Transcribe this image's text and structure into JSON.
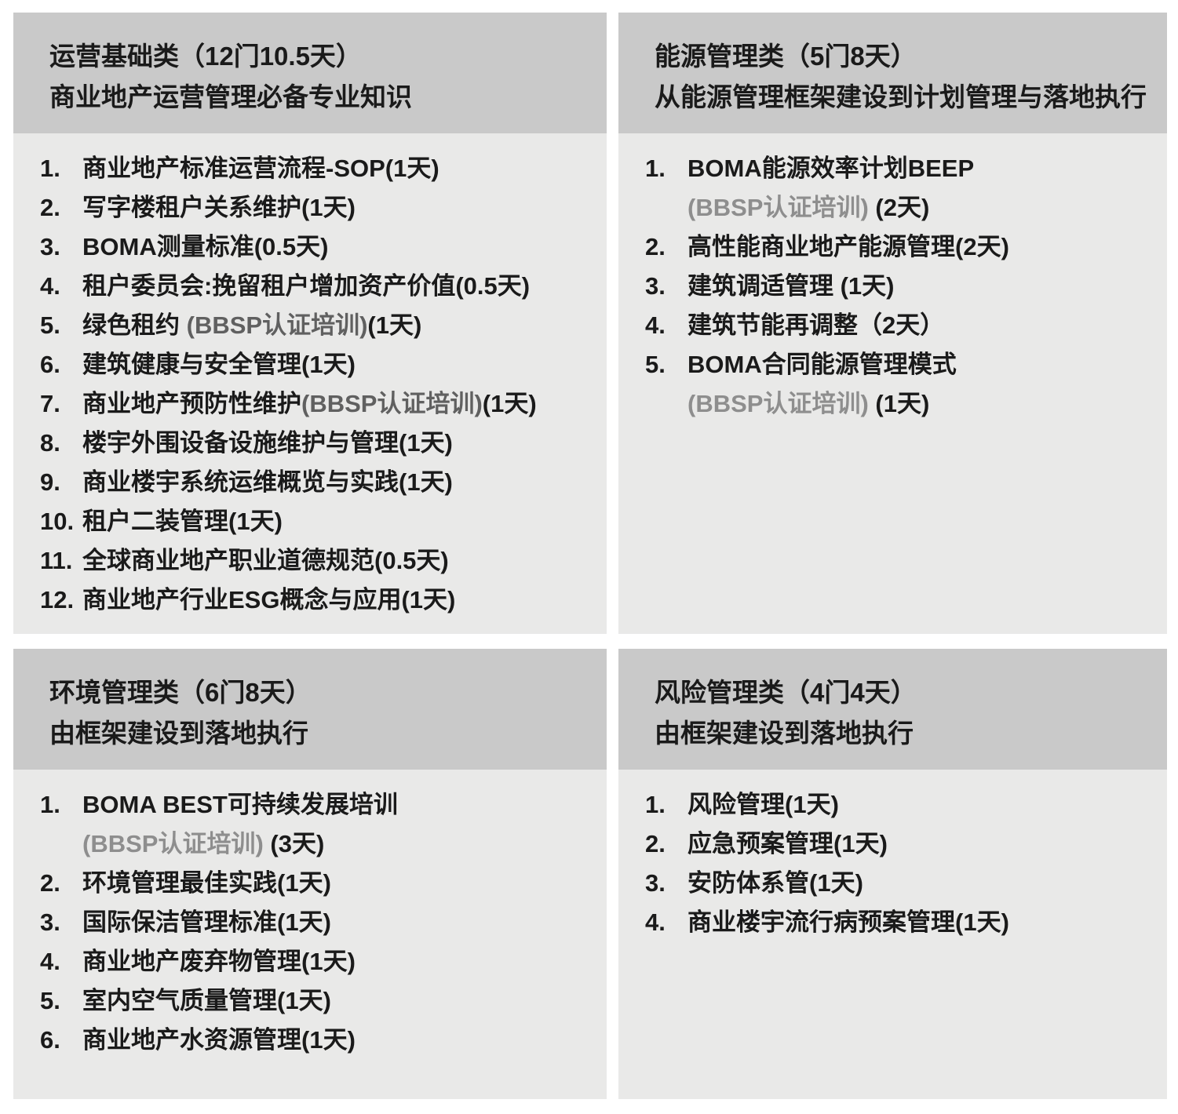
{
  "colors": {
    "page_bg": "#ffffff",
    "header_bg": "#c9c9c9",
    "body_bg": "#e9e9e8",
    "text": "#1a1a1a",
    "gray_inline": "#606060",
    "gray_line": "#8e8e8e"
  },
  "panels": [
    {
      "id": "operations",
      "title": "运营基础类（12门10.5天）",
      "subtitle": "商业地产运营管理必备专业知识",
      "items": [
        {
          "num": "1.",
          "lines": [
            [
              {
                "t": "商业地产标准运营流程-SOP(1天)"
              }
            ]
          ]
        },
        {
          "num": "2.",
          "lines": [
            [
              {
                "t": "写字楼租户关系维护(1天)"
              }
            ]
          ]
        },
        {
          "num": "3.",
          "lines": [
            [
              {
                "t": "BOMA测量标准(0.5天)"
              }
            ]
          ]
        },
        {
          "num": "4.",
          "lines": [
            [
              {
                "t": "租户委员会:挽留租户增加资产价值(0.5天)"
              }
            ]
          ]
        },
        {
          "num": "5.",
          "lines": [
            [
              {
                "t": "绿色租约 "
              },
              {
                "t": "(BBSP认证培训)",
                "c": "gray_inline"
              },
              {
                "t": "(1天)"
              }
            ]
          ]
        },
        {
          "num": "6.",
          "lines": [
            [
              {
                "t": "建筑健康与安全管理(1天)"
              }
            ]
          ]
        },
        {
          "num": "7.",
          "lines": [
            [
              {
                "t": "商业地产预防性维护"
              },
              {
                "t": "(BBSP认证培训)",
                "c": "gray_inline"
              },
              {
                "t": "(1天)"
              }
            ]
          ]
        },
        {
          "num": "8.",
          "lines": [
            [
              {
                "t": "楼宇外围设备设施维护与管理(1天)"
              }
            ]
          ]
        },
        {
          "num": "9.",
          "lines": [
            [
              {
                "t": "商业楼宇系统运维概览与实践(1天)"
              }
            ]
          ]
        },
        {
          "num": "10.",
          "lines": [
            [
              {
                "t": "租户二装管理(1天)"
              }
            ]
          ]
        },
        {
          "num": "11.",
          "lines": [
            [
              {
                "t": "全球商业地产职业道德规范(0.5天)"
              }
            ]
          ]
        },
        {
          "num": "12.",
          "lines": [
            [
              {
                "t": "商业地产行业ESG概念与应用(1天)"
              }
            ]
          ]
        }
      ]
    },
    {
      "id": "energy",
      "title": "能源管理类（5门8天）",
      "subtitle": "从能源管理框架建设到计划管理与落地执行",
      "items": [
        {
          "num": "1.",
          "lines": [
            [
              {
                "t": "BOMA能源效率计划BEEP"
              }
            ],
            [
              {
                "t": "(BBSP认证培训) ",
                "c": "gray_line"
              },
              {
                "t": "(2天)"
              }
            ]
          ]
        },
        {
          "num": "2.",
          "lines": [
            [
              {
                "t": "高性能商业地产能源管理(2天)"
              }
            ]
          ]
        },
        {
          "num": "3.",
          "lines": [
            [
              {
                "t": "建筑调适管理 (1天)"
              }
            ]
          ]
        },
        {
          "num": "4.",
          "lines": [
            [
              {
                "t": "建筑节能再调整（2天）"
              }
            ]
          ]
        },
        {
          "num": "5.",
          "lines": [
            [
              {
                "t": "BOMA合同能源管理模式"
              }
            ],
            [
              {
                "t": "(BBSP认证培训) ",
                "c": "gray_line"
              },
              {
                "t": "(1天)"
              }
            ]
          ]
        }
      ]
    },
    {
      "id": "environment",
      "title": "环境管理类（6门8天）",
      "subtitle": "由框架建设到落地执行",
      "items": [
        {
          "num": "1.",
          "lines": [
            [
              {
                "t": "BOMA BEST可持续发展培训"
              }
            ],
            [
              {
                "t": "(BBSP认证培训) ",
                "c": "gray_line"
              },
              {
                "t": "(3天)"
              }
            ]
          ]
        },
        {
          "num": "2.",
          "lines": [
            [
              {
                "t": "环境管理最佳实践(1天)"
              }
            ]
          ]
        },
        {
          "num": "3.",
          "lines": [
            [
              {
                "t": "国际保洁管理标准(1天)"
              }
            ]
          ]
        },
        {
          "num": "4.",
          "lines": [
            [
              {
                "t": "商业地产废弃物管理(1天)"
              }
            ]
          ]
        },
        {
          "num": "5.",
          "lines": [
            [
              {
                "t": "室内空气质量管理(1天)"
              }
            ]
          ]
        },
        {
          "num": "6.",
          "lines": [
            [
              {
                "t": "商业地产水资源管理(1天)"
              }
            ]
          ]
        }
      ]
    },
    {
      "id": "risk",
      "title": "风险管理类（4门4天）",
      "subtitle": "由框架建设到落地执行",
      "items": [
        {
          "num": "1.",
          "lines": [
            [
              {
                "t": "风险管理(1天)"
              }
            ]
          ]
        },
        {
          "num": "2.",
          "lines": [
            [
              {
                "t": "应急预案管理(1天)"
              }
            ]
          ]
        },
        {
          "num": "3.",
          "lines": [
            [
              {
                "t": "安防体系管(1天)"
              }
            ]
          ]
        },
        {
          "num": "4.",
          "lines": [
            [
              {
                "t": "商业楼宇流行病预案管理(1天)"
              }
            ]
          ]
        }
      ]
    }
  ]
}
